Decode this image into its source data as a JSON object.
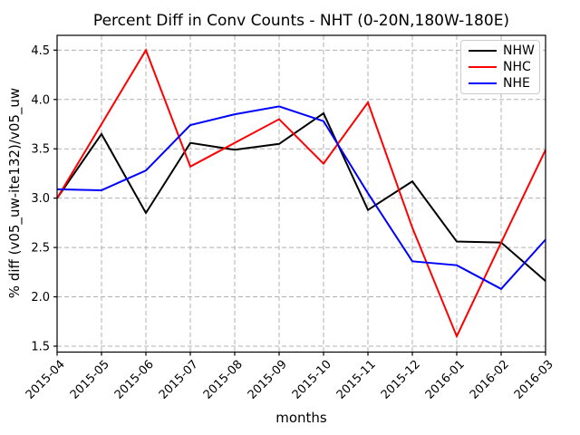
{
  "chart_data": {
    "type": "line",
    "title": "Percent Diff in Conv Counts - NHT (0-20N,180W-180E)",
    "xlabel": "months",
    "ylabel": "% diff (v05_uw-ite132)/v05_uw",
    "categories": [
      "2015-04",
      "2015-05",
      "2015-06",
      "2015-07",
      "2015-08",
      "2015-09",
      "2015-10",
      "2015-11",
      "2015-12",
      "2016-01",
      "2016-02",
      "2016-03"
    ],
    "series": [
      {
        "name": "NHW",
        "color": "#000000",
        "values": [
          3.0,
          3.65,
          2.85,
          3.56,
          3.49,
          3.55,
          3.86,
          2.88,
          3.17,
          2.56,
          2.55,
          2.16
        ]
      },
      {
        "name": "NHC",
        "color": "#ff0000",
        "values": [
          3.0,
          3.75,
          4.5,
          3.32,
          3.56,
          3.8,
          3.35,
          3.97,
          2.7,
          1.6,
          2.55,
          3.49
        ]
      },
      {
        "name": "NHE",
        "color": "#0000ff",
        "values": [
          3.09,
          3.08,
          3.28,
          3.74,
          3.85,
          3.93,
          3.78,
          3.05,
          2.36,
          2.32,
          2.08,
          2.58
        ]
      }
    ],
    "yticks": [
      1.5,
      2.0,
      2.5,
      3.0,
      3.5,
      4.0,
      4.5
    ],
    "ytick_labels": [
      "1.5",
      "2.0",
      "2.5",
      "3.0",
      "3.5",
      "4.0",
      "4.5"
    ],
    "ylim": [
      1.44,
      4.65
    ],
    "grid": true,
    "grid_color": "#b0b0b0",
    "legend_position": "upper right",
    "legend_labels": [
      "NHW",
      "NHC",
      "NHE"
    ]
  }
}
